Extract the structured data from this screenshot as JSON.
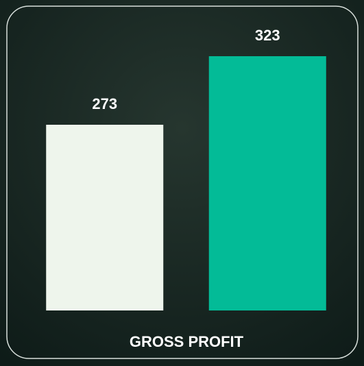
{
  "chart_data": {
    "type": "bar",
    "title": "GROSS PROFIT",
    "categories": [
      null,
      null
    ],
    "values": [
      273,
      323
    ],
    "colors": [
      "#eef5ec",
      "#03bb97"
    ],
    "ylim": [
      137.5,
      349
    ]
  }
}
